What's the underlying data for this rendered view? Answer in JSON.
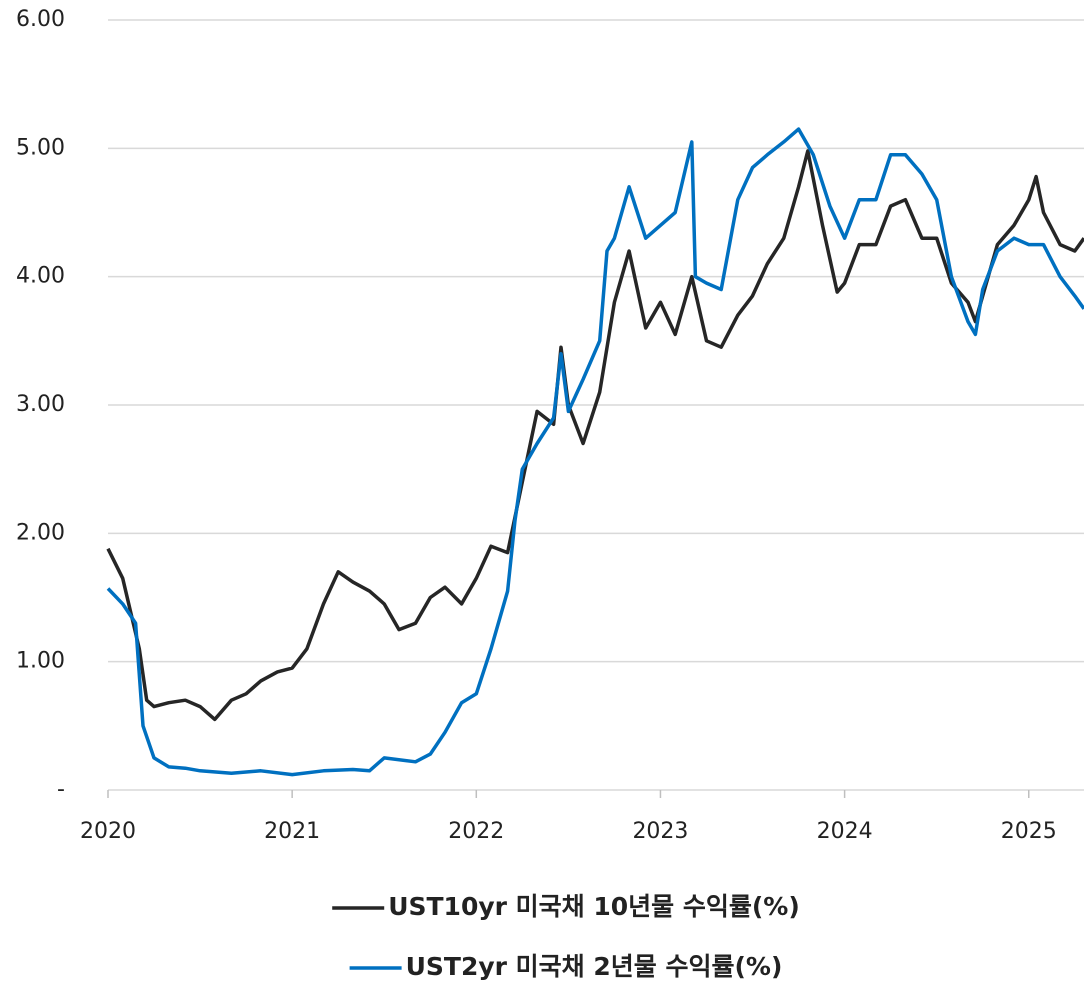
{
  "chart_data": {
    "type": "line",
    "xlim": [
      2020,
      2025.3
    ],
    "xticks": [
      2020,
      2021,
      2022,
      2023,
      2024,
      2025
    ],
    "ylim": [
      0,
      6
    ],
    "yticks": [
      {
        "value": 0,
        "label": "-"
      },
      {
        "value": 1,
        "label": "1.00"
      },
      {
        "value": 2,
        "label": "2.00"
      },
      {
        "value": 3,
        "label": "3.00"
      },
      {
        "value": 4,
        "label": "4.00"
      },
      {
        "value": 5,
        "label": "5.00"
      },
      {
        "value": 6,
        "label": "6.00"
      }
    ],
    "grid": true,
    "series": [
      {
        "name": "UST10yr 미국채 10년물 수익률(%)",
        "color": "#262626",
        "x": [
          2020.0,
          2020.08,
          2020.17,
          2020.21,
          2020.25,
          2020.33,
          2020.42,
          2020.5,
          2020.58,
          2020.67,
          2020.75,
          2020.83,
          2020.92,
          2021.0,
          2021.08,
          2021.17,
          2021.25,
          2021.33,
          2021.42,
          2021.5,
          2021.58,
          2021.67,
          2021.75,
          2021.83,
          2021.92,
          2022.0,
          2022.08,
          2022.17,
          2022.25,
          2022.33,
          2022.42,
          2022.46,
          2022.5,
          2022.58,
          2022.67,
          2022.75,
          2022.83,
          2022.92,
          2023.0,
          2023.08,
          2023.17,
          2023.25,
          2023.33,
          2023.42,
          2023.5,
          2023.58,
          2023.67,
          2023.75,
          2023.8,
          2023.88,
          2023.96,
          2024.0,
          2024.08,
          2024.17,
          2024.25,
          2024.33,
          2024.42,
          2024.5,
          2024.58,
          2024.67,
          2024.71,
          2024.75,
          2024.83,
          2024.92,
          2025.0,
          2025.04,
          2025.08,
          2025.17,
          2025.25,
          2025.3
        ],
        "values": [
          1.88,
          1.65,
          1.1,
          0.7,
          0.65,
          0.68,
          0.7,
          0.65,
          0.55,
          0.7,
          0.75,
          0.85,
          0.92,
          0.95,
          1.1,
          1.45,
          1.7,
          1.62,
          1.55,
          1.45,
          1.25,
          1.3,
          1.5,
          1.58,
          1.45,
          1.65,
          1.9,
          1.85,
          2.4,
          2.95,
          2.85,
          3.45,
          3.0,
          2.7,
          3.1,
          3.8,
          4.2,
          3.6,
          3.8,
          3.55,
          4.0,
          3.5,
          3.45,
          3.7,
          3.85,
          4.1,
          4.3,
          4.7,
          4.98,
          4.4,
          3.88,
          3.95,
          4.25,
          4.25,
          4.55,
          4.6,
          4.3,
          4.3,
          3.95,
          3.8,
          3.65,
          3.85,
          4.25,
          4.4,
          4.6,
          4.78,
          4.5,
          4.25,
          4.2,
          4.3
        ]
      },
      {
        "name": "UST2yr 미국채 2년물 수익률(%)",
        "color": "#0070c0",
        "x": [
          2020.0,
          2020.08,
          2020.15,
          2020.19,
          2020.25,
          2020.33,
          2020.42,
          2020.5,
          2020.67,
          2020.83,
          2021.0,
          2021.17,
          2021.33,
          2021.42,
          2021.5,
          2021.67,
          2021.75,
          2021.83,
          2021.92,
          2022.0,
          2022.08,
          2022.17,
          2022.21,
          2022.25,
          2022.33,
          2022.42,
          2022.46,
          2022.5,
          2022.58,
          2022.67,
          2022.71,
          2022.75,
          2022.83,
          2022.92,
          2023.0,
          2023.08,
          2023.17,
          2023.19,
          2023.25,
          2023.33,
          2023.42,
          2023.5,
          2023.58,
          2023.67,
          2023.75,
          2023.83,
          2023.92,
          2024.0,
          2024.08,
          2024.17,
          2024.25,
          2024.33,
          2024.42,
          2024.5,
          2024.58,
          2024.67,
          2024.71,
          2024.75,
          2024.83,
          2024.92,
          2025.0,
          2025.08,
          2025.17,
          2025.25,
          2025.3
        ],
        "values": [
          1.57,
          1.45,
          1.3,
          0.5,
          0.25,
          0.18,
          0.17,
          0.15,
          0.13,
          0.15,
          0.12,
          0.15,
          0.16,
          0.15,
          0.25,
          0.22,
          0.28,
          0.45,
          0.68,
          0.75,
          1.1,
          1.55,
          2.1,
          2.5,
          2.7,
          2.9,
          3.4,
          2.95,
          3.2,
          3.5,
          4.2,
          4.3,
          4.7,
          4.3,
          4.4,
          4.5,
          5.05,
          4.0,
          3.95,
          3.9,
          4.6,
          4.85,
          4.95,
          5.05,
          5.15,
          4.95,
          4.55,
          4.3,
          4.6,
          4.6,
          4.95,
          4.95,
          4.8,
          4.6,
          4.0,
          3.65,
          3.55,
          3.9,
          4.2,
          4.3,
          4.25,
          4.25,
          4.0,
          3.85,
          3.75
        ]
      }
    ]
  }
}
